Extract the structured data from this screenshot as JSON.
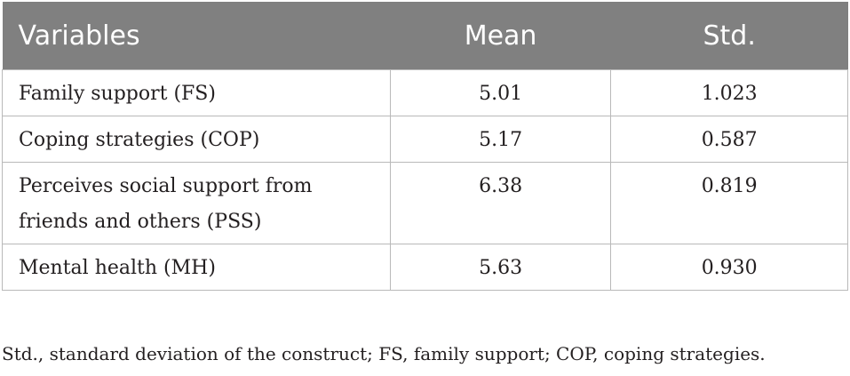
{
  "table": {
    "headers": {
      "variables": "Variables",
      "mean": "Mean",
      "std": "Std."
    },
    "rows": [
      {
        "variable": "Family support (FS)",
        "mean": "5.01",
        "std": "1.023"
      },
      {
        "variable": "Coping strategies (COP)",
        "mean": "5.17",
        "std": "0.587"
      },
      {
        "variable": "Perceives social support from friends and others (PSS)",
        "mean": "6.38",
        "std": "0.819"
      },
      {
        "variable": "Mental health (MH)",
        "mean": "5.63",
        "std": "0.930"
      }
    ]
  },
  "footnote": "Std., standard deviation of the construct; FS, family support; COP, coping strategies.",
  "colors": {
    "header_background": "#808080",
    "header_text": "#ffffff",
    "border": "#b9b9b9",
    "body_text": "#231f20"
  }
}
